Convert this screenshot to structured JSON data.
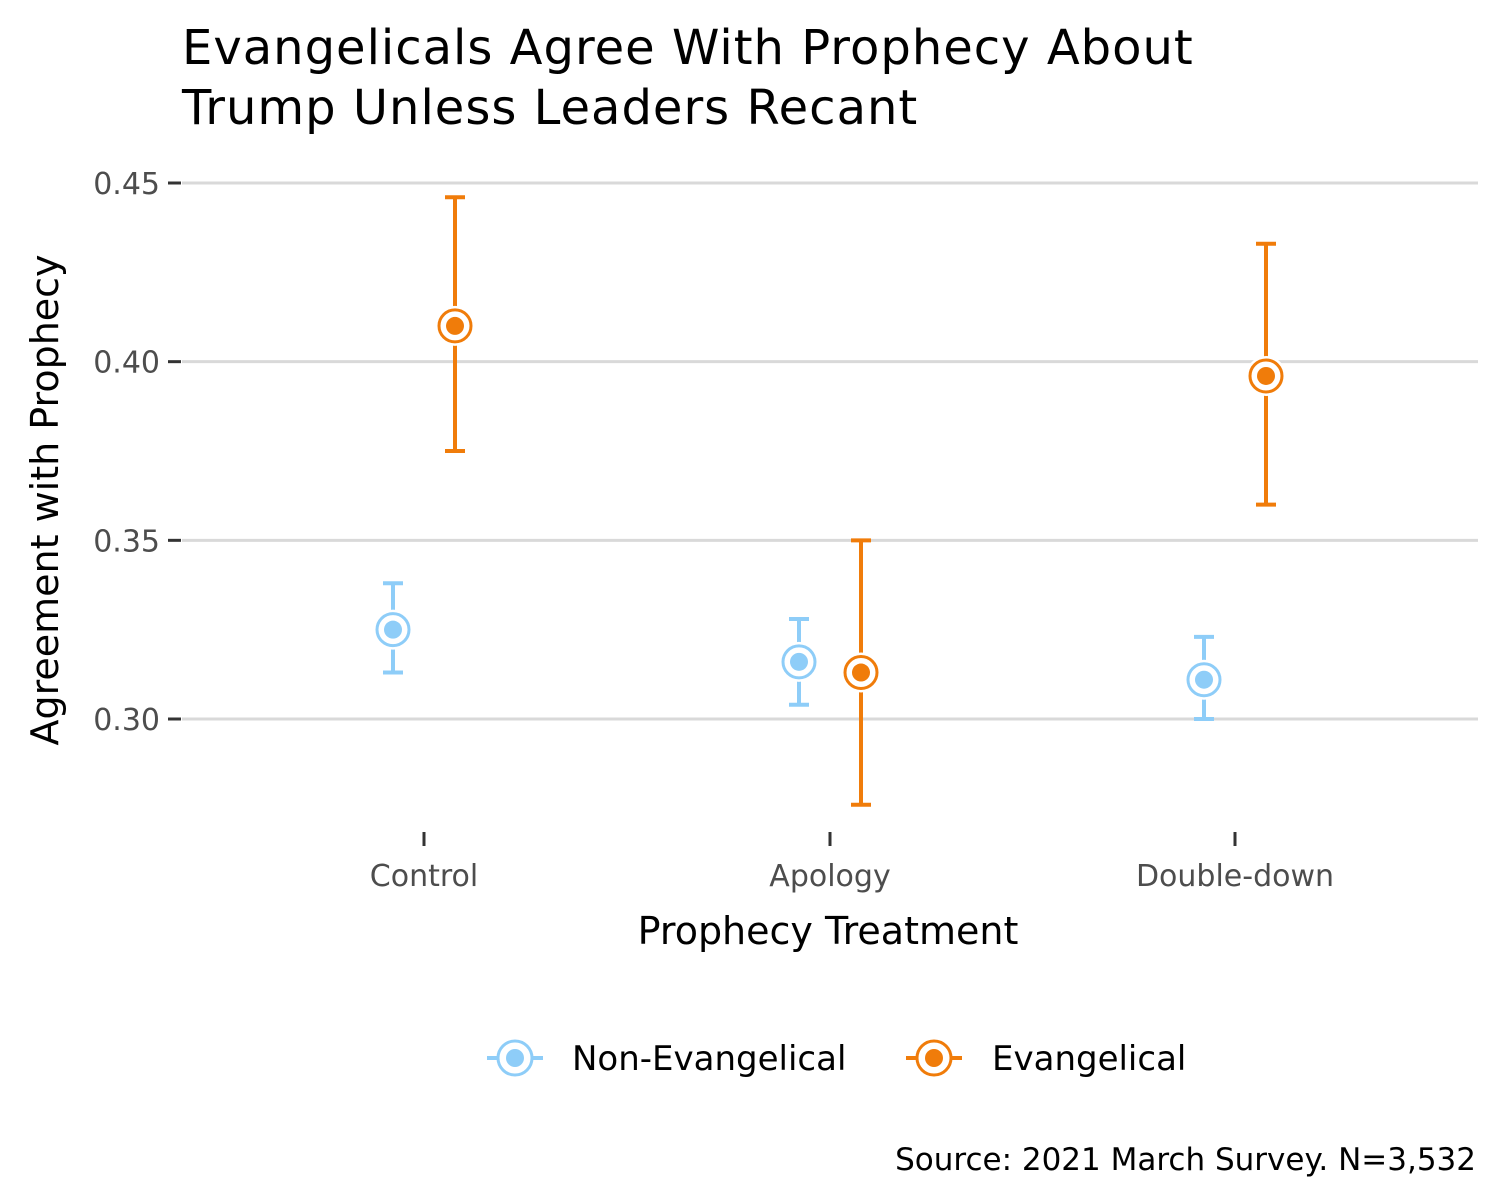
{
  "chart_data": {
    "type": "scatter",
    "subtype": "pointrange",
    "title_lines": [
      "Evangelicals Agree With Prophecy About",
      "Trump Unless Leaders Recant"
    ],
    "xlabel": "Prophecy Treatment",
    "ylabel": "Agreement with Prophecy",
    "categories": [
      "Control",
      "Apology",
      "Double-down"
    ],
    "ylim": [
      0.27,
      0.45
    ],
    "yticks": [
      0.3,
      0.35,
      0.4,
      0.45
    ],
    "ytick_labels": [
      "0.30",
      "0.35",
      "0.40",
      "0.45"
    ],
    "grid": "horizontal-major",
    "legend_position": "bottom",
    "series": [
      {
        "name": "Non-Evangelical",
        "color": "#8ecdf8",
        "values": [
          0.325,
          0.316,
          0.311
        ],
        "lower": [
          0.313,
          0.304,
          0.3
        ],
        "upper": [
          0.338,
          0.328,
          0.323
        ]
      },
      {
        "name": "Evangelical",
        "color": "#f07c0a",
        "values": [
          0.41,
          0.313,
          0.396
        ],
        "lower": [
          0.375,
          0.276,
          0.36
        ],
        "upper": [
          0.446,
          0.35,
          0.433
        ]
      }
    ],
    "caption": "Source: 2021 March Survey. N=3,532"
  }
}
